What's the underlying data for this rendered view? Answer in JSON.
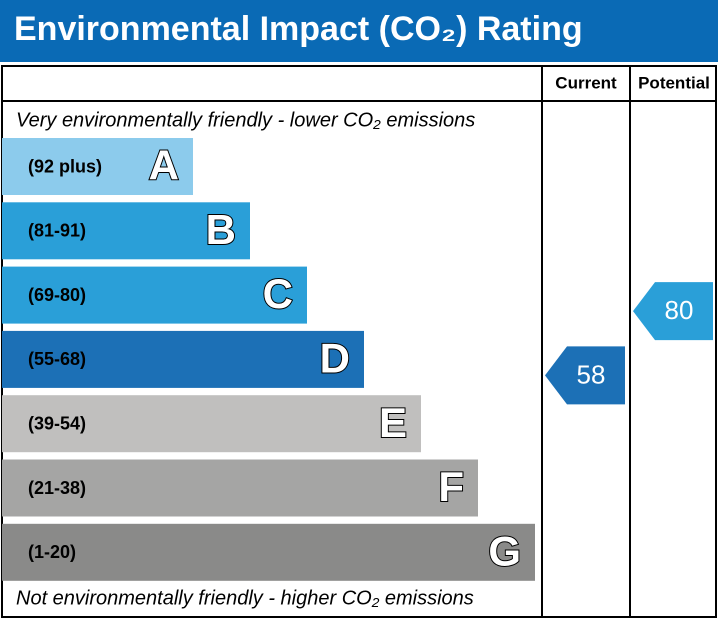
{
  "chart_data": {
    "type": "epc",
    "title": "Environmental Impact (CO₂) Rating",
    "columns": [
      "Current",
      "Potential"
    ],
    "top_note": "Very environmentally friendly - lower CO₂ emissions",
    "bottom_note": "Not environmentally friendly - higher CO₂ emissions",
    "bands": [
      {
        "range": "(92 plus)",
        "letter": "A",
        "color": "#8ccbec"
      },
      {
        "range": "(81-91)",
        "letter": "B",
        "color": "#2a9fd8"
      },
      {
        "range": "(69-80)",
        "letter": "C",
        "color": "#2a9fd8"
      },
      {
        "range": "(55-68)",
        "letter": "D",
        "color": "#1c70b6"
      },
      {
        "range": "(39-54)",
        "letter": "E",
        "color": "#c0bfbe"
      },
      {
        "range": "(21-38)",
        "letter": "F",
        "color": "#a5a5a4"
      },
      {
        "range": "(1-20)",
        "letter": "G",
        "color": "#8a8a89"
      }
    ],
    "values": [
      58,
      80
    ]
  }
}
